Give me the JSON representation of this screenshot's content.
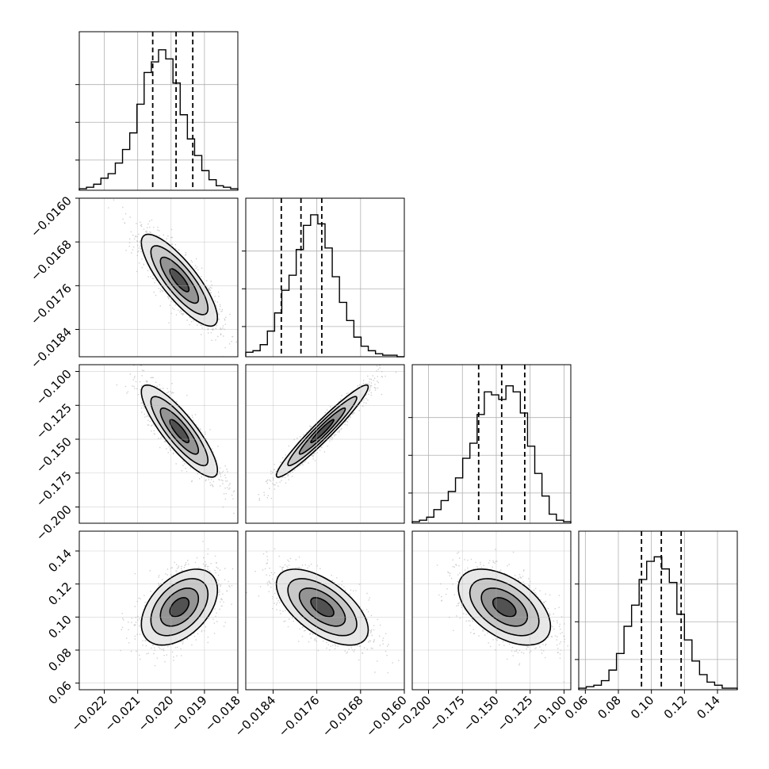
{
  "chart_data": {
    "type": "corner",
    "description_free": true,
    "parameters": [
      {
        "id": "p0",
        "ticks": [
          -0.022,
          -0.021,
          -0.02,
          -0.019,
          -0.018
        ],
        "tick_labels": [
          "−0.022",
          "−0.021",
          "−0.020",
          "−0.019",
          "−0.018"
        ],
        "range": [
          -0.02275,
          -0.018
        ],
        "quantiles": [
          -0.02055,
          -0.01985,
          -0.01935
        ],
        "hist": [
          0.01,
          0.02,
          0.04,
          0.08,
          0.11,
          0.18,
          0.27,
          0.38,
          0.57,
          0.78,
          0.85,
          0.93,
          0.87,
          0.71,
          0.5,
          0.34,
          0.23,
          0.13,
          0.07,
          0.03,
          0.02,
          0.01
        ]
      },
      {
        "id": "p1",
        "ticks": [
          -0.0184,
          -0.0176,
          -0.0168,
          -0.016
        ],
        "tick_labels": [
          "−0.0184",
          "−0.0176",
          "−0.0168",
          "−0.0160"
        ],
        "range": [
          -0.0189,
          -0.016
        ],
        "quantiles": [
          -0.01825,
          -0.01789,
          -0.01751
        ],
        "hist": [
          0.03,
          0.04,
          0.08,
          0.17,
          0.29,
          0.44,
          0.54,
          0.71,
          0.87,
          0.94,
          0.88,
          0.72,
          0.53,
          0.36,
          0.24,
          0.13,
          0.07,
          0.04,
          0.02,
          0.01,
          0.01,
          0.0
        ]
      },
      {
        "id": "p2",
        "ticks": [
          -0.2,
          -0.175,
          -0.15,
          -0.125,
          -0.1
        ],
        "tick_labels": [
          "−0.200",
          "−0.175",
          "−0.150",
          "−0.125",
          "−0.100"
        ],
        "range": [
          -0.212,
          -0.095
        ],
        "quantiles": [
          -0.163,
          -0.146,
          -0.129
        ],
        "hist": [
          0.01,
          0.02,
          0.04,
          0.09,
          0.15,
          0.21,
          0.3,
          0.43,
          0.53,
          0.72,
          0.87,
          0.85,
          0.82,
          0.91,
          0.87,
          0.73,
          0.51,
          0.33,
          0.18,
          0.06,
          0.02,
          0.01
        ]
      },
      {
        "id": "p3",
        "ticks": [
          0.06,
          0.08,
          0.1,
          0.12,
          0.14
        ],
        "tick_labels": [
          "0.06",
          "0.08",
          "0.10",
          "0.12",
          "0.14"
        ],
        "range": [
          0.056,
          0.152
        ],
        "quantiles": [
          0.094,
          0.106,
          0.118
        ],
        "hist": [
          0.01,
          0.02,
          0.03,
          0.06,
          0.13,
          0.24,
          0.42,
          0.56,
          0.73,
          0.85,
          0.88,
          0.8,
          0.71,
          0.5,
          0.33,
          0.19,
          0.1,
          0.05,
          0.03,
          0.01,
          0.01
        ]
      }
    ],
    "hist_y_ticks": [
      0.2,
      0.45,
      0.7
    ],
    "pairs": [
      {
        "x": 0,
        "y": 1,
        "mean": [
          -0.01975,
          -0.0175
        ],
        "sd": [
          0.00057,
          0.00042
        ],
        "corr": -0.82
      },
      {
        "x": 0,
        "y": 2,
        "mean": [
          -0.01975,
          -0.144
        ],
        "sd": [
          0.00057,
          0.017
        ],
        "corr": -0.85
      },
      {
        "x": 1,
        "y": 2,
        "mean": [
          -0.0175,
          -0.144
        ],
        "sd": [
          0.00042,
          0.017
        ],
        "corr": 0.96
      },
      {
        "x": 0,
        "y": 3,
        "mean": [
          -0.01975,
          0.106
        ],
        "sd": [
          0.00057,
          0.0115
        ],
        "corr": 0.45
      },
      {
        "x": 1,
        "y": 3,
        "mean": [
          -0.0175,
          0.106
        ],
        "sd": [
          0.00042,
          0.0115
        ],
        "corr": -0.6
      },
      {
        "x": 2,
        "y": 3,
        "mean": [
          -0.144,
          0.106
        ],
        "sd": [
          0.017,
          0.0115
        ],
        "corr": -0.5
      }
    ],
    "contour_levels_sigma": [
      0.5,
      1.0,
      1.5,
      2.0
    ],
    "colors": {
      "line": "#000000",
      "grid": "#b0b0b0",
      "points": "#555555",
      "background": "#ffffff"
    }
  }
}
